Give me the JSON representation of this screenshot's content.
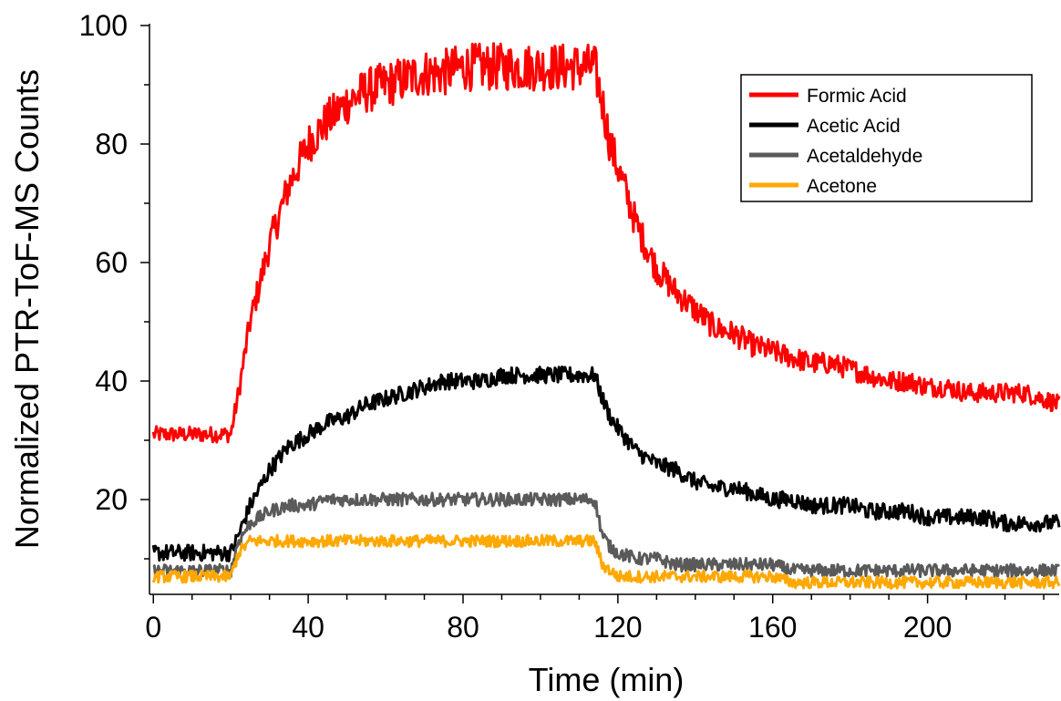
{
  "chart_data": {
    "type": "line",
    "xlabel": "Time (min)",
    "ylabel": "Normalized PTR-ToF-MS Counts",
    "xlim": [
      -1,
      234
    ],
    "ylim": [
      4,
      100
    ],
    "x_ticks": [
      0,
      40,
      80,
      120,
      160,
      200
    ],
    "x_tick_labels": [
      "0",
      "40",
      "80",
      "120",
      "160",
      "200"
    ],
    "y_ticks": [
      20,
      40,
      60,
      80,
      100
    ],
    "y_tick_labels": [
      "20",
      "40",
      "60",
      "80",
      "100"
    ],
    "grid": false,
    "legend_position": "top-right",
    "x": [
      0,
      5,
      10,
      15,
      20,
      22,
      25,
      30,
      35,
      40,
      45,
      50,
      55,
      60,
      65,
      70,
      75,
      80,
      85,
      90,
      95,
      100,
      105,
      110,
      114,
      116,
      118,
      120,
      125,
      130,
      135,
      140,
      145,
      150,
      155,
      160,
      165,
      170,
      175,
      180,
      185,
      190,
      195,
      200,
      205,
      210,
      215,
      220,
      225,
      230,
      234
    ],
    "series": [
      {
        "name": "Formic Acid",
        "color": "#ff0000",
        "values": [
          31,
          31,
          31,
          31,
          31,
          38,
          50,
          63,
          73,
          80,
          84,
          87,
          89,
          90,
          91,
          92,
          92,
          93,
          93,
          93,
          93,
          93,
          93,
          93,
          93,
          87,
          80,
          76,
          66,
          59,
          55,
          52,
          49,
          48,
          46,
          45,
          44,
          43,
          43,
          42,
          41,
          40,
          40,
          39,
          39,
          38,
          38,
          38,
          38,
          37,
          36
        ]
      },
      {
        "name": "Acetic Acid",
        "color": "#000000",
        "values": [
          11,
          11,
          11,
          11,
          11,
          14,
          19,
          25,
          29,
          31,
          33,
          34,
          36,
          37,
          38,
          39,
          40,
          40,
          40,
          41,
          41,
          41,
          41,
          41,
          41,
          37,
          34,
          32,
          28,
          26,
          25,
          23,
          22,
          22,
          21,
          20,
          20,
          19,
          19,
          19,
          18,
          18,
          18,
          17,
          17,
          17,
          17,
          16,
          16,
          16,
          16
        ]
      },
      {
        "name": "Acetaldehyde",
        "color": "#5a5a5a",
        "values": [
          8,
          8,
          8,
          8,
          8,
          13,
          16,
          18,
          19,
          19,
          20,
          20,
          20,
          20,
          20,
          20,
          20,
          20,
          20,
          20,
          20,
          20,
          20,
          20,
          20,
          14,
          12,
          11,
          10,
          10,
          9,
          9,
          9,
          9,
          9,
          9,
          8,
          8,
          8,
          8,
          8,
          8,
          8,
          8,
          8,
          8,
          8,
          8,
          8,
          8,
          8
        ]
      },
      {
        "name": "Acetone",
        "color": "#ffa800",
        "values": [
          7,
          7,
          7,
          7,
          7,
          11,
          13,
          13,
          13,
          13,
          13,
          13,
          13,
          13,
          13,
          13,
          13,
          13,
          13,
          13,
          13,
          13,
          13,
          13,
          13,
          9,
          8,
          7,
          7,
          7,
          7,
          7,
          7,
          7,
          7,
          7,
          6,
          6,
          6,
          6,
          6,
          6,
          6,
          6,
          6,
          6,
          6,
          6,
          6,
          6,
          6
        ]
      }
    ]
  }
}
